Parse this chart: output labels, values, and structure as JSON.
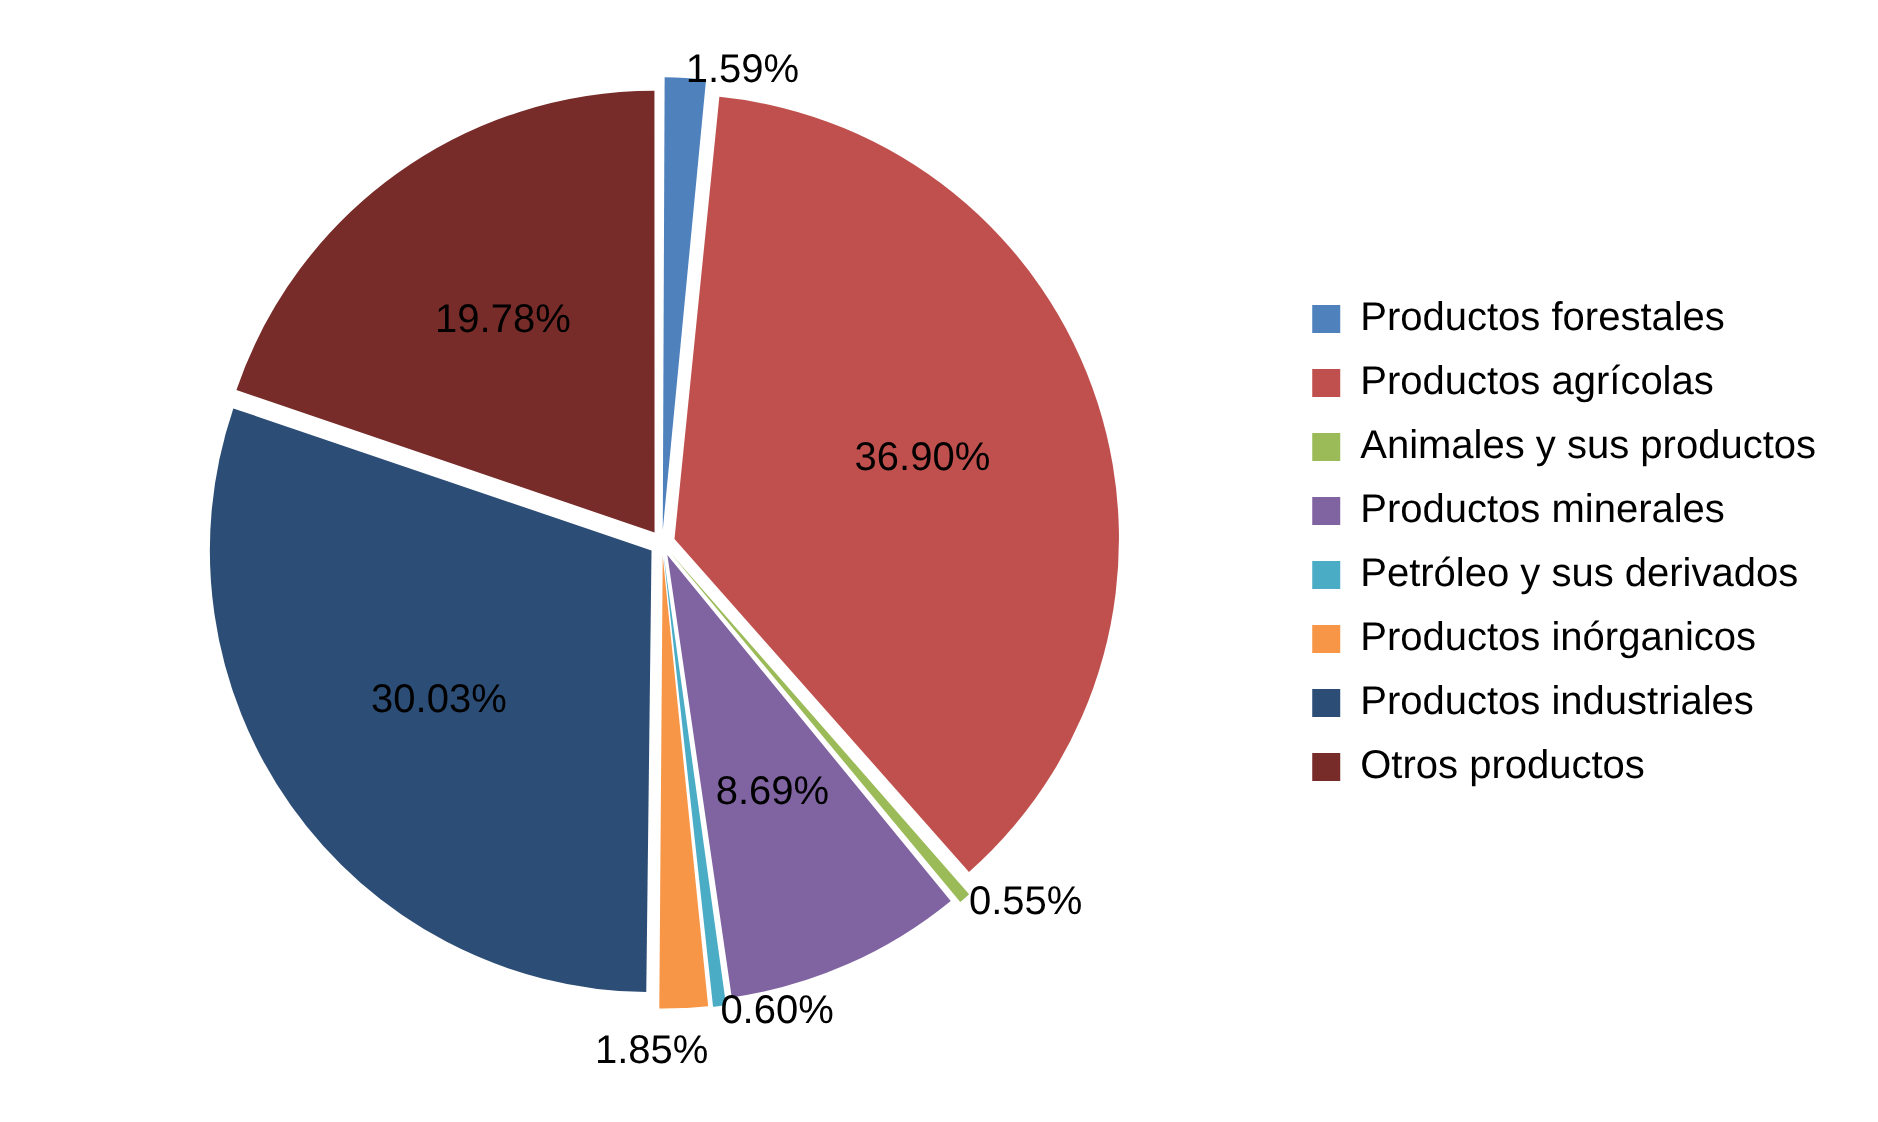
{
  "chart_data": {
    "type": "pie",
    "categories": [
      "Productos forestales",
      "Productos agrícolas",
      "Animales y sus productos",
      "Productos minerales",
      "Petróleo y sus derivados",
      "Productos inórganicos",
      "Productos industriales",
      "Otros productos"
    ],
    "values": [
      1.59,
      36.9,
      0.55,
      8.69,
      0.6,
      1.85,
      30.03,
      19.78
    ],
    "value_labels": [
      "1.59%",
      "36.90%",
      "0.55%",
      "8.69%",
      "0.60%",
      "1.85%",
      "30.03%",
      "19.78%"
    ],
    "colors": [
      "#4f81bd",
      "#c0504d",
      "#9bbb59",
      "#8064a2",
      "#4bacc6",
      "#f79646",
      "#2c4d75",
      "#772c2a"
    ],
    "legend": "right"
  }
}
